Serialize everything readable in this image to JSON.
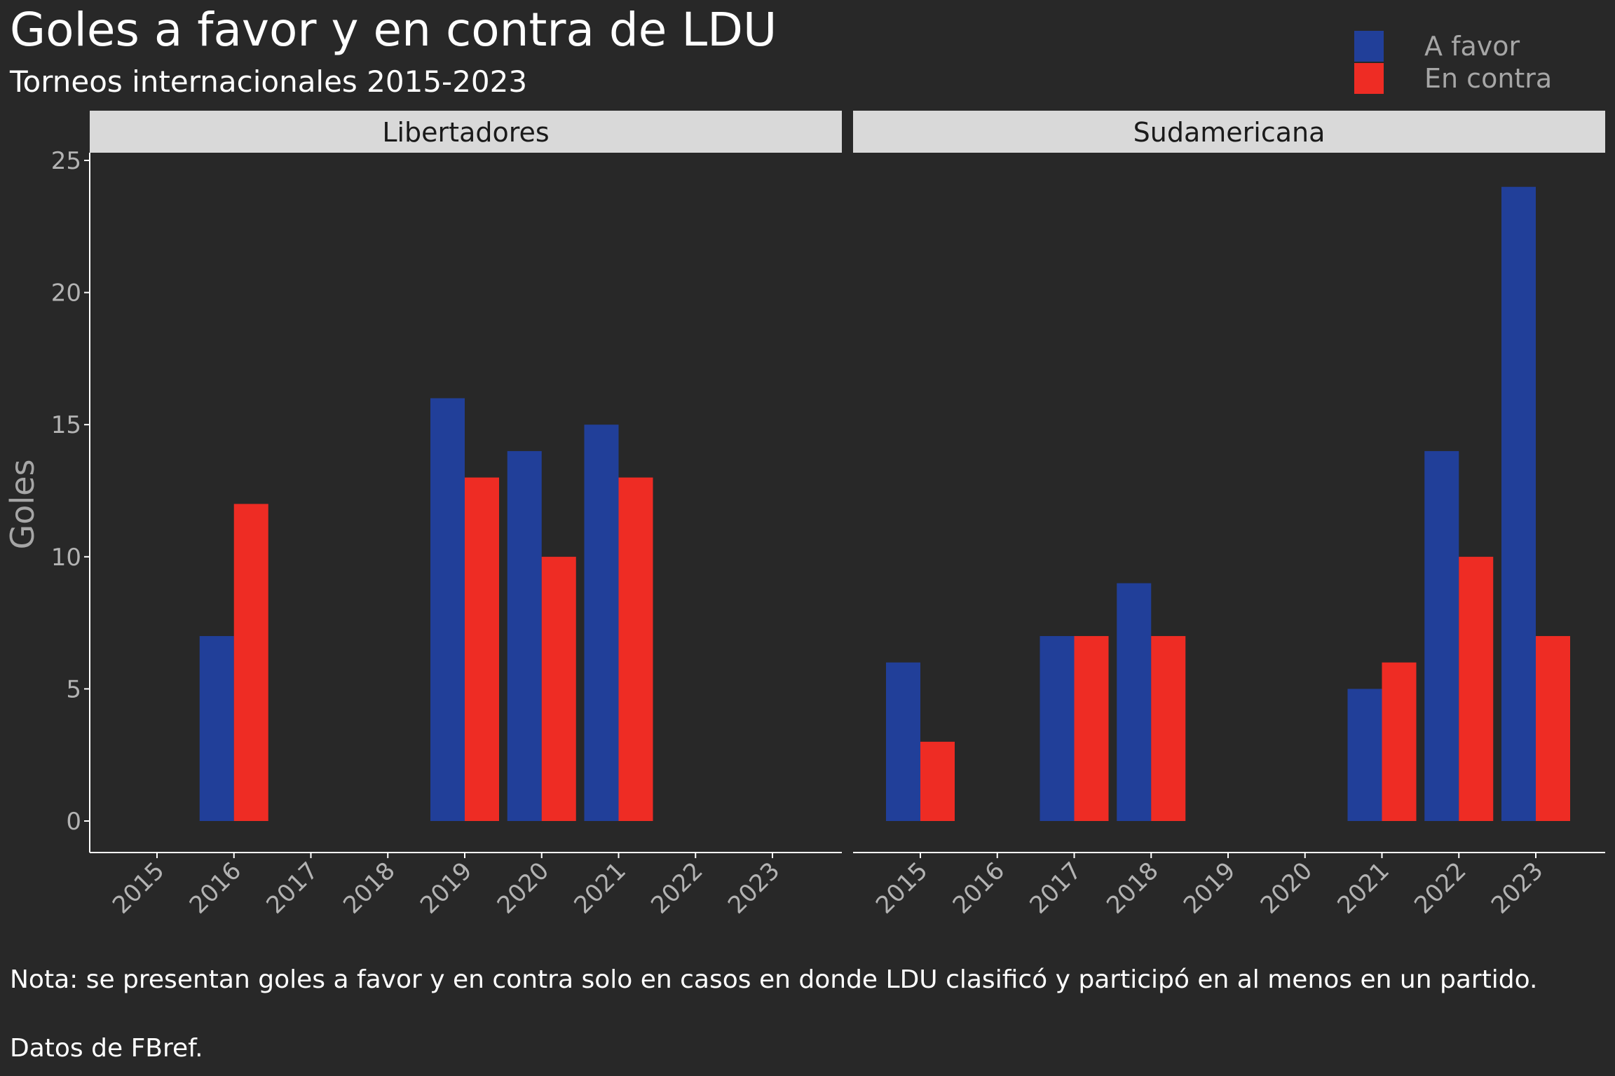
{
  "title": "Goles a favor y en contra de LDU",
  "subtitle": "Torneos internacionales 2015-2023",
  "note": "Nota: se presentan goles a favor y en contra solo en casos en donde LDU clasificó y participó en al menos en un partido.",
  "source": "Datos de FBref.",
  "legend": [
    {
      "label": "A favor",
      "color": "#213f99"
    },
    {
      "label": "En contra",
      "color": "#ee2c24"
    }
  ],
  "chart_data": {
    "type": "bar",
    "ylabel": "Goles",
    "xlabel": "",
    "ylim": [
      0,
      25
    ],
    "yticks": [
      0,
      5,
      10,
      15,
      20,
      25
    ],
    "legend_position": "top-right",
    "grid": false,
    "categories": [
      "2015",
      "2016",
      "2017",
      "2018",
      "2019",
      "2020",
      "2021",
      "2022",
      "2023"
    ],
    "panels": [
      {
        "name": "Libertadores",
        "series": [
          {
            "name": "A favor",
            "values": [
              null,
              7,
              null,
              null,
              16,
              14,
              15,
              null,
              null
            ]
          },
          {
            "name": "En contra",
            "values": [
              null,
              12,
              null,
              null,
              13,
              10,
              13,
              null,
              null
            ]
          }
        ]
      },
      {
        "name": "Sudamericana",
        "series": [
          {
            "name": "A favor",
            "values": [
              6,
              null,
              7,
              9,
              null,
              null,
              5,
              14,
              24
            ]
          },
          {
            "name": "En contra",
            "values": [
              3,
              null,
              7,
              7,
              null,
              null,
              6,
              10,
              7
            ]
          }
        ]
      }
    ]
  }
}
